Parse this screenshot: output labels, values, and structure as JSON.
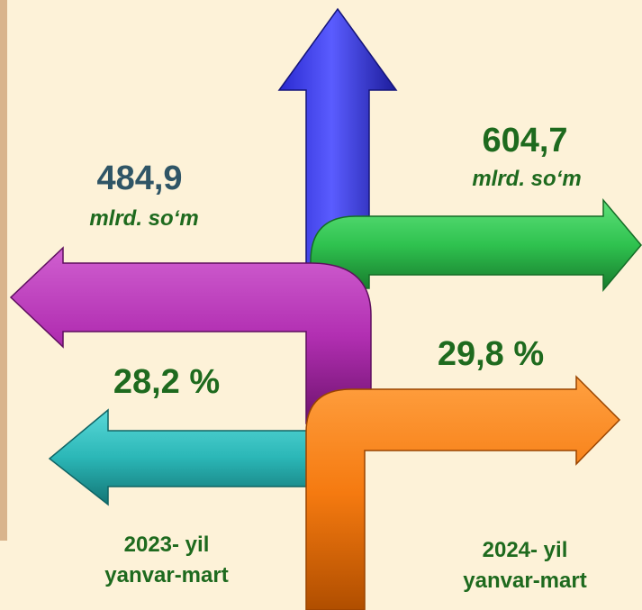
{
  "left": {
    "amount": "484,9",
    "unit": "mlrd. so‘m",
    "share": "28,2 %",
    "period": [
      "2023- yil",
      "yanvar-mart"
    ]
  },
  "right": {
    "amount": "604,7",
    "unit": "mlrd. so‘m",
    "share": "29,8 %",
    "period": [
      "2024- yil",
      "yanvar-mart"
    ]
  }
}
